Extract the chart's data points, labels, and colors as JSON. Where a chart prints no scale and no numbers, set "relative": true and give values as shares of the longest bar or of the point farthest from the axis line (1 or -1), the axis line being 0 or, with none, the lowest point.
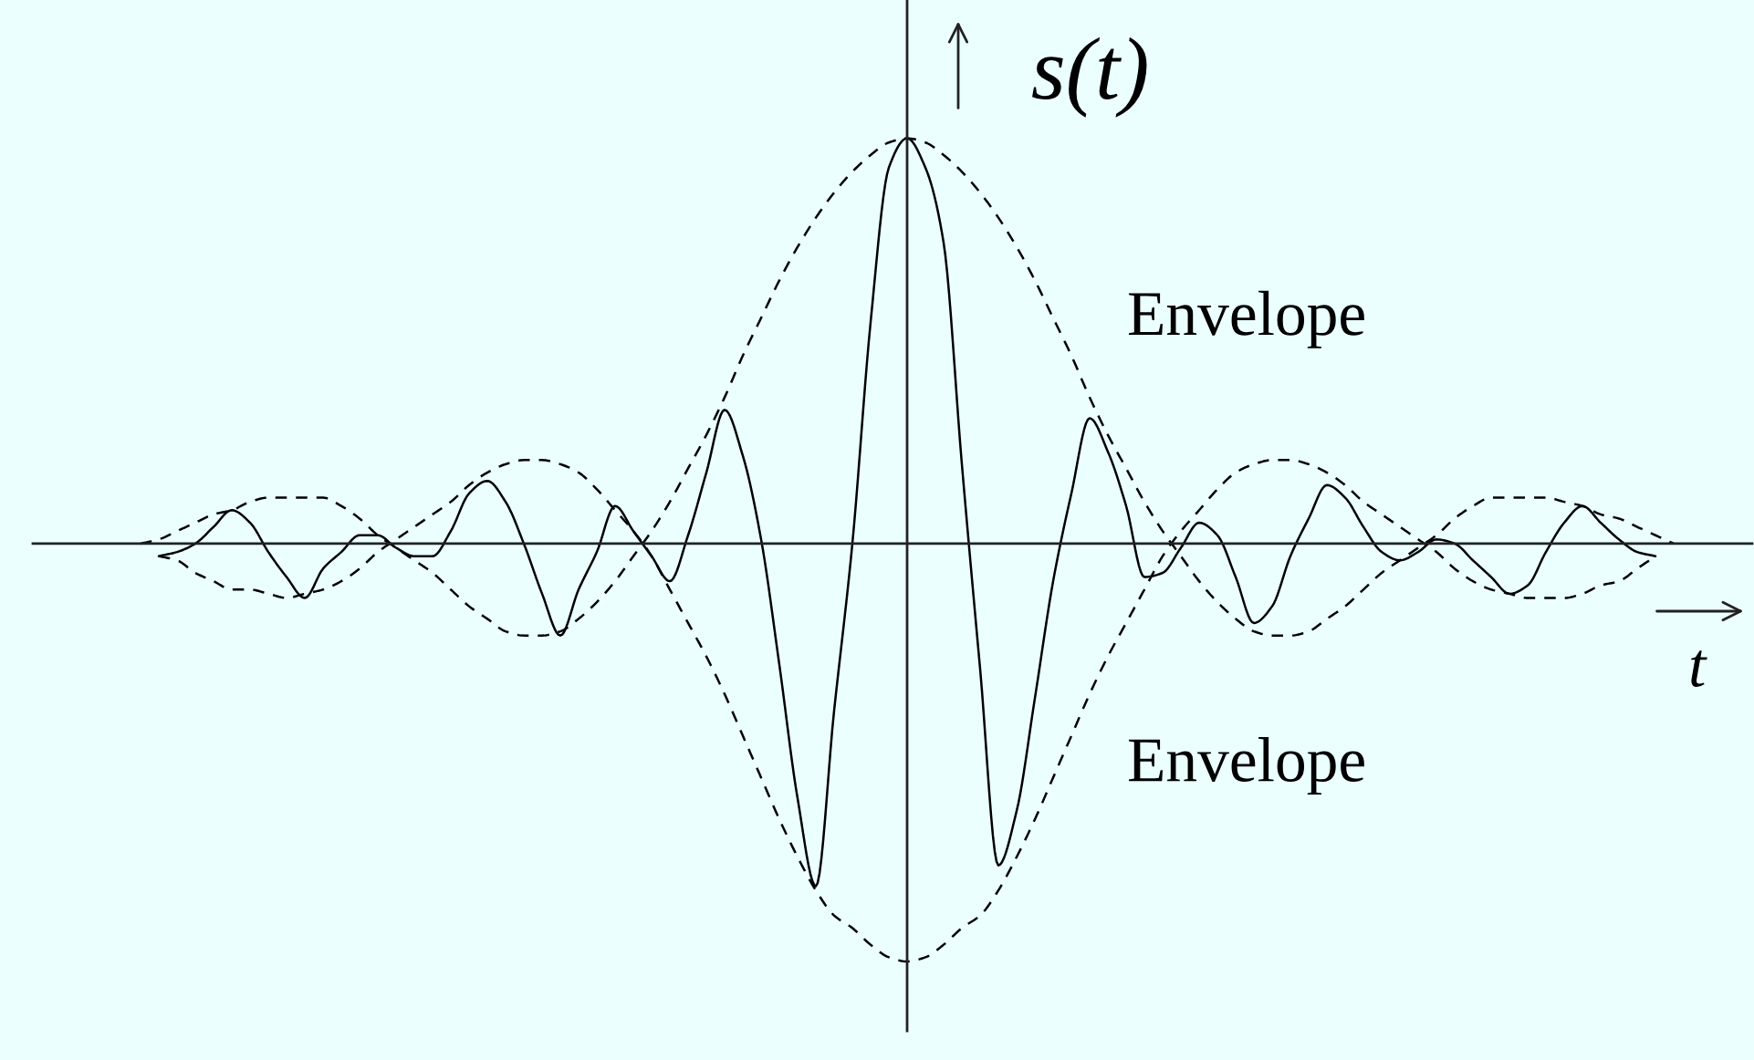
{
  "chart_data": {
    "type": "line",
    "relative": true,
    "xlabel": "t",
    "ylabel": "s(t)",
    "categories": [
      null,
      null,
      null,
      null,
      null,
      null,
      null,
      null,
      null,
      null,
      null,
      null,
      null,
      null,
      null,
      null,
      null,
      null,
      null,
      null,
      null,
      null,
      null,
      null,
      null,
      null,
      null,
      null,
      null,
      null,
      null,
      null,
      null,
      null,
      null,
      null,
      null,
      null,
      null,
      null,
      null,
      null,
      null,
      null,
      null,
      null,
      null,
      null,
      null,
      null,
      null,
      null,
      null,
      null,
      null,
      null,
      null,
      null,
      null,
      null,
      null,
      null,
      null,
      null,
      null,
      null,
      null,
      null,
      null,
      null,
      null,
      null,
      null,
      null,
      null,
      null,
      null,
      null,
      null,
      null,
      null,
      null,
      null,
      null,
      null
    ],
    "series": [
      {
        "color": "#000000",
        "line_style": "solid",
        "values": [
          null,
          -0.03,
          -0.02,
          0.0,
          0.04,
          0.08,
          0.05,
          -0.02,
          -0.08,
          -0.13,
          -0.06,
          -0.02,
          0.02,
          0.02,
          -0.01,
          -0.03,
          -0.03,
          0.03,
          0.12,
          0.15,
          0.1,
          0.0,
          -0.12,
          -0.22,
          -0.11,
          -0.02,
          0.09,
          0.03,
          -0.03,
          -0.09,
          0.02,
          0.17,
          0.32,
          0.21,
          0.01,
          -0.29,
          -0.61,
          -0.82,
          -0.4,
          0.0,
          0.53,
          0.9,
          0.97,
          0.9,
          0.72,
          0.19,
          -0.3,
          -0.77,
          -0.64,
          -0.37,
          -0.09,
          0.12,
          0.3,
          0.22,
          0.09,
          -0.08,
          -0.07,
          -0.01,
          0.05,
          0.02,
          -0.08,
          -0.19,
          -0.15,
          -0.03,
          0.06,
          0.14,
          0.11,
          0.04,
          -0.02,
          -0.04,
          -0.02,
          0.01,
          0.0,
          -0.04,
          -0.08,
          -0.12,
          -0.1,
          -0.02,
          0.05,
          0.09,
          0.05,
          0.01,
          -0.02,
          -0.03,
          null
        ]
      },
      {
        "name": "Envelope",
        "color": "#000000",
        "line_style": "dashed",
        "values": [
          0.0,
          0.01,
          0.03,
          0.05,
          0.07,
          0.08,
          0.1,
          0.11,
          0.11,
          0.11,
          0.11,
          0.09,
          0.06,
          0.02,
          -0.01,
          -0.04,
          -0.07,
          -0.11,
          -0.15,
          -0.18,
          -0.21,
          -0.22,
          -0.22,
          -0.21,
          -0.18,
          -0.14,
          -0.09,
          -0.03,
          0.03,
          0.1,
          0.18,
          0.26,
          0.35,
          0.45,
          0.54,
          0.63,
          0.71,
          0.78,
          0.84,
          0.89,
          0.93,
          0.96,
          0.97,
          0.96,
          0.93,
          0.89,
          0.84,
          0.78,
          0.71,
          0.63,
          0.54,
          0.45,
          0.35,
          0.26,
          0.18,
          0.1,
          0.03,
          -0.03,
          -0.09,
          -0.14,
          -0.18,
          -0.21,
          -0.22,
          -0.22,
          -0.21,
          -0.18,
          -0.15,
          -0.11,
          -0.07,
          -0.04,
          -0.01,
          0.02,
          0.06,
          0.09,
          0.11,
          0.11,
          0.11,
          0.11,
          0.1,
          0.09,
          0.07,
          0.06,
          0.04,
          0.02,
          0.0
        ]
      },
      {
        "name": "Envelope",
        "color": "#000000",
        "line_style": "dashed",
        "values": [
          null,
          -0.03,
          -0.04,
          -0.07,
          -0.09,
          -0.11,
          -0.11,
          -0.12,
          -0.13,
          -0.12,
          -0.11,
          -0.09,
          -0.06,
          -0.02,
          0.01,
          0.04,
          0.07,
          0.1,
          0.14,
          0.17,
          0.19,
          0.2,
          0.2,
          0.19,
          0.17,
          0.13,
          0.08,
          0.03,
          -0.03,
          -0.11,
          -0.19,
          -0.27,
          -0.36,
          -0.46,
          -0.56,
          -0.66,
          -0.75,
          -0.83,
          -0.89,
          -0.92,
          -0.96,
          -0.99,
          -1.0,
          -0.99,
          -0.96,
          -0.92,
          -0.89,
          -0.83,
          -0.75,
          -0.66,
          -0.56,
          -0.46,
          -0.36,
          -0.27,
          -0.19,
          -0.11,
          -0.03,
          0.03,
          0.08,
          0.13,
          0.17,
          0.19,
          0.2,
          0.2,
          0.19,
          0.17,
          0.14,
          0.1,
          0.07,
          0.04,
          0.01,
          -0.02,
          -0.06,
          -0.09,
          -0.11,
          -0.12,
          -0.13,
          -0.13,
          -0.13,
          -0.12,
          -0.1,
          -0.09,
          -0.06,
          -0.03,
          null
        ]
      }
    ]
  }
}
